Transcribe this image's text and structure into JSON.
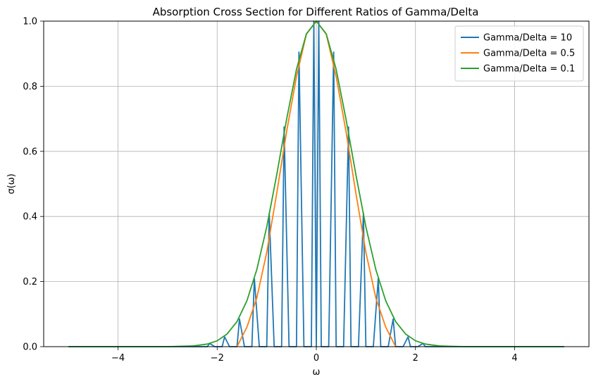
{
  "chart_data": {
    "type": "line",
    "title": "Absorption Cross Section for Different Ratios of Gamma/Delta",
    "xlabel": "ω",
    "ylabel": "σ(ω)",
    "xlim": [
      -5.5,
      5.5
    ],
    "ylim": [
      0,
      1
    ],
    "xticks": [
      -4,
      -2,
      0,
      2,
      4
    ],
    "xtick_labels": [
      "−4",
      "−2",
      "0",
      "2",
      "4"
    ],
    "yticks": [
      0.0,
      0.2,
      0.4,
      0.6,
      0.8,
      1.0
    ],
    "ytick_labels": [
      "0.0",
      "0.2",
      "0.4",
      "0.6",
      "0.8",
      "1.0"
    ],
    "grid": true,
    "legend_position": "top-right",
    "series": [
      {
        "name": "Gamma/Delta = 10",
        "color": "#1f77b4",
        "x": [
          -5.0,
          -2.4,
          -2.2,
          -2.15,
          -2.05,
          -1.9,
          -1.85,
          -1.75,
          -1.6,
          -1.55,
          -1.45,
          -1.3,
          -1.25,
          -1.15,
          -1.0,
          -0.95,
          -0.85,
          -0.7,
          -0.65,
          -0.55,
          -0.4,
          -0.35,
          -0.25,
          -0.1,
          -0.05,
          0.0,
          0.05,
          0.1,
          0.25,
          0.35,
          0.4,
          0.55,
          0.65,
          0.7,
          0.85,
          0.95,
          1.0,
          1.15,
          1.25,
          1.3,
          1.45,
          1.55,
          1.6,
          1.75,
          1.85,
          1.9,
          2.05,
          2.15,
          2.2,
          2.4,
          5.0
        ],
        "values": [
          0.0,
          0.0,
          0.0,
          0.01,
          0.0,
          0.0,
          0.03,
          0.0,
          0.0,
          0.085,
          0.0,
          0.0,
          0.21,
          0.0,
          0.0,
          0.41,
          0.0,
          0.0,
          0.675,
          0.0,
          0.0,
          0.905,
          0.0,
          0.0,
          1.0,
          0.0,
          1.0,
          0.0,
          0.0,
          0.905,
          0.0,
          0.0,
          0.675,
          0.0,
          0.0,
          0.41,
          0.0,
          0.0,
          0.21,
          0.0,
          0.0,
          0.085,
          0.0,
          0.0,
          0.03,
          0.0,
          0.0,
          0.01,
          0.0,
          0.0,
          0.0
        ]
      },
      {
        "name": "Gamma/Delta = 0.5",
        "color": "#ff7f0e",
        "x": [
          -1.6,
          -1.4,
          -1.2,
          -1.0,
          -0.8,
          -0.6,
          -0.4,
          -0.2,
          0.0,
          0.2,
          0.4,
          0.6,
          0.8,
          1.0,
          1.2,
          1.4,
          1.6
        ],
        "values": [
          0.0,
          0.06,
          0.15,
          0.29,
          0.47,
          0.66,
          0.83,
          0.96,
          1.0,
          0.96,
          0.83,
          0.66,
          0.47,
          0.29,
          0.15,
          0.06,
          0.0
        ]
      },
      {
        "name": "Gamma/Delta = 0.1",
        "color": "#2ca02c",
        "x": [
          -5.0,
          -3.0,
          -2.5,
          -2.2,
          -2.0,
          -1.8,
          -1.6,
          -1.4,
          -1.2,
          -1.0,
          -0.8,
          -0.6,
          -0.4,
          -0.2,
          0.0,
          0.2,
          0.4,
          0.6,
          0.8,
          1.0,
          1.2,
          1.4,
          1.6,
          1.8,
          2.0,
          2.2,
          2.5,
          3.0,
          5.0
        ],
        "values": [
          0.0,
          0.0,
          0.002,
          0.008,
          0.018,
          0.039,
          0.077,
          0.141,
          0.237,
          0.368,
          0.527,
          0.698,
          0.852,
          0.961,
          1.0,
          0.961,
          0.852,
          0.698,
          0.527,
          0.368,
          0.237,
          0.141,
          0.077,
          0.039,
          0.018,
          0.008,
          0.002,
          0.0,
          0.0
        ]
      }
    ]
  }
}
